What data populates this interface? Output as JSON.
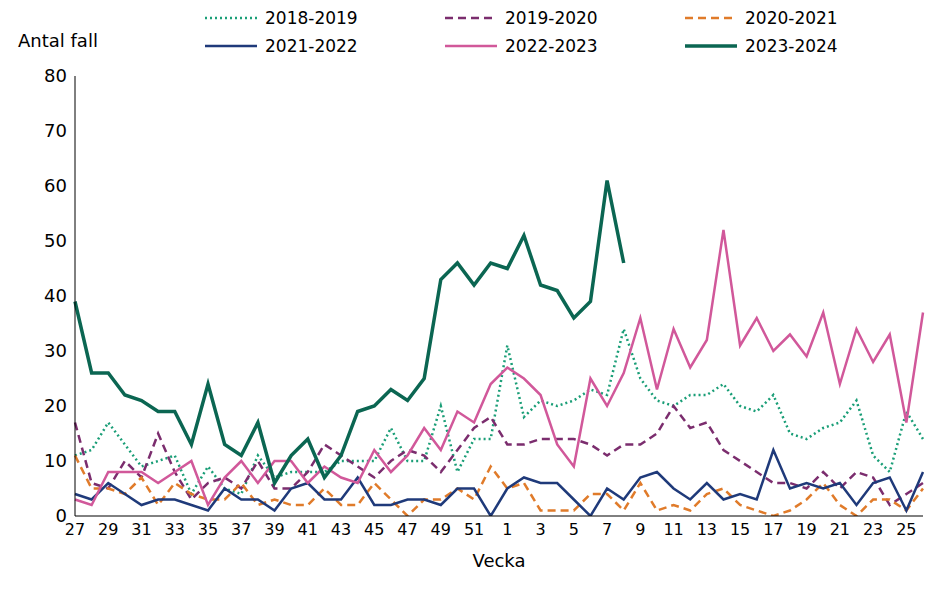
{
  "chart_data": {
    "type": "line",
    "y_label": "Antal fall",
    "x_label": "Vecka",
    "legend": "top",
    "grid": false,
    "ylim": [
      0,
      80
    ],
    "yticks": [
      0,
      10,
      20,
      30,
      40,
      50,
      60,
      70,
      80
    ],
    "categories": [
      27,
      null,
      29,
      null,
      31,
      null,
      33,
      null,
      35,
      null,
      37,
      null,
      39,
      null,
      41,
      null,
      43,
      null,
      45,
      null,
      47,
      null,
      49,
      null,
      51,
      null,
      1,
      null,
      3,
      null,
      5,
      null,
      7,
      null,
      9,
      null,
      11,
      null,
      13,
      null,
      15,
      null,
      17,
      null,
      19,
      null,
      21,
      null,
      23,
      null,
      25,
      null
    ],
    "series": [
      {
        "name": "2018-2019",
        "color": "#1a9e77",
        "line_style": "dotted",
        "values": [
          11,
          12,
          17,
          13,
          9,
          10,
          11,
          4,
          9,
          5,
          4,
          11,
          7,
          8,
          8,
          8,
          10,
          10,
          10,
          16,
          10,
          10,
          20,
          8,
          14,
          14,
          31,
          18,
          21,
          20,
          21,
          23,
          22,
          34,
          25,
          21,
          20,
          22,
          22,
          24,
          20,
          19,
          22,
          15,
          14,
          16,
          17,
          21,
          11,
          8,
          19,
          14
        ]
      },
      {
        "name": "2019-2020",
        "color": "#7b2d6e",
        "line_style": "dashed",
        "values": [
          17,
          6,
          5,
          10,
          7,
          15,
          8,
          3,
          6,
          7,
          5,
          10,
          5,
          5,
          8,
          13,
          11,
          9,
          7,
          10,
          12,
          11,
          8,
          12,
          16,
          18,
          13,
          13,
          14,
          14,
          14,
          13,
          11,
          13,
          13,
          15,
          20,
          16,
          17,
          12,
          10,
          8,
          6,
          6,
          5,
          8,
          5,
          8,
          7,
          2,
          4,
          6
        ]
      },
      {
        "name": "2020-2021",
        "color": "#e07b2a",
        "line_style": "dashed",
        "values": [
          11,
          5,
          5,
          4,
          7,
          2,
          6,
          4,
          3,
          3,
          6,
          2,
          3,
          2,
          2,
          5,
          2,
          2,
          6,
          3,
          0,
          3,
          3,
          5,
          3,
          9,
          5,
          6,
          1,
          1,
          1,
          4,
          4,
          1,
          6,
          1,
          2,
          1,
          4,
          5,
          2,
          1,
          0,
          1,
          3,
          6,
          2,
          0,
          3,
          3,
          1,
          5
        ]
      },
      {
        "name": "2021-2022",
        "color": "#1f3a7a",
        "line_style": "solid",
        "values": [
          4,
          3,
          6,
          4,
          2,
          3,
          3,
          2,
          1,
          5,
          3,
          3,
          1,
          5,
          6,
          3,
          3,
          7,
          2,
          2,
          3,
          3,
          2,
          5,
          5,
          0,
          5,
          7,
          6,
          6,
          3,
          0,
          5,
          3,
          7,
          8,
          5,
          3,
          6,
          3,
          4,
          3,
          12,
          5,
          6,
          5,
          6,
          2,
          6,
          7,
          1,
          8
        ]
      },
      {
        "name": "2022-2023",
        "color": "#d1589a",
        "line_style": "solid",
        "values": [
          3,
          2,
          8,
          8,
          8,
          6,
          8,
          10,
          2,
          7,
          10,
          6,
          10,
          10,
          6,
          9,
          7,
          6,
          12,
          8,
          11,
          16,
          12,
          19,
          17,
          24,
          27,
          25,
          22,
          13,
          9,
          25,
          20,
          26,
          36,
          23,
          34,
          27,
          32,
          52,
          31,
          36,
          30,
          33,
          29,
          37,
          24,
          34,
          28,
          33,
          17,
          37
        ]
      },
      {
        "name": "2023-2024",
        "color": "#0b6652",
        "line_style": "solid",
        "values": [
          39,
          26,
          26,
          22,
          21,
          19,
          19,
          13,
          24,
          13,
          11,
          17,
          6,
          11,
          14,
          7,
          11,
          19,
          20,
          23,
          21,
          25,
          43,
          46,
          42,
          46,
          45,
          51,
          42,
          41,
          36,
          39,
          61,
          46,
          null,
          null,
          null,
          null,
          null,
          null,
          null,
          null,
          null,
          null,
          null,
          null,
          null,
          null,
          null,
          null,
          null,
          null
        ]
      }
    ]
  }
}
